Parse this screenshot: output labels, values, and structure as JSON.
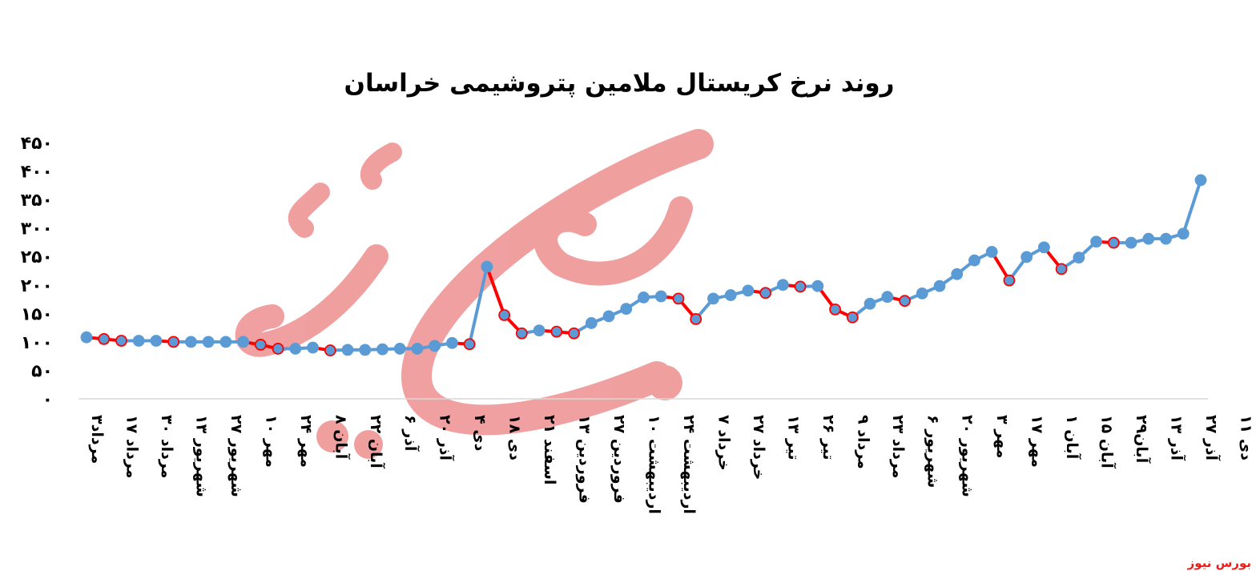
{
  "chart_data": {
    "type": "line",
    "title": "روند نرخ کریستال ملامین پتروشیمی خراسان",
    "xlabel": "",
    "ylabel": "",
    "ylim": [
      0,
      450
    ],
    "y_ticks": [
      "۰",
      "۵۰",
      "۱۰۰",
      "۱۵۰",
      "۲۰۰",
      "۲۵۰",
      "۳۰۰",
      "۳۵۰",
      "۴۰۰",
      "۴۵۰"
    ],
    "grid": false,
    "legend": "none",
    "colors": {
      "rise": "#5b9bd5",
      "fall": "#ff0000",
      "axis": "#d9d9d9",
      "point_fill": "#5b9bd5"
    },
    "x_tick_labels": [
      "۳مرداد",
      "۱۷ مرداد",
      "۳۰ مرداد",
      "۱۳ شهریور",
      "۲۷ شهریور",
      "۱۰ مهر",
      "۲۴ مهر",
      "۸ آبان",
      "۲۲ آبان",
      "۶ آذر",
      "۲۰ آذر",
      "۴ دی",
      "۱۸ دی",
      "۲۱ اسفند",
      "۱۳ فروردین",
      "۲۷ فروردین",
      "۱۰ اردیبهشت",
      "۲۴ اردیبهشت",
      "۷ خرداد",
      "۲۷ خرداد",
      "۱۳ تیر",
      "۲۶ تیر",
      "۹ مرداد",
      "۲۳ مرداد",
      "۶ شهریور",
      "۲۰ شهریور",
      "۳ مهر",
      "۱۷ مهر",
      "۱ آبان",
      "۱۵ آبان",
      "۲۹آبان",
      "۱۳ آذر",
      "۲۷ آذر",
      "۱۱ دی"
    ],
    "values": [
      108,
      105,
      102,
      102,
      102,
      100,
      100,
      100,
      100,
      100,
      95,
      88,
      88,
      90,
      85,
      86,
      86,
      87,
      88,
      88,
      93,
      98,
      96,
      232,
      147,
      115,
      120,
      118,
      115,
      133,
      145,
      158,
      178,
      180,
      176,
      140,
      176,
      182,
      190,
      186,
      200,
      197,
      198,
      157,
      143,
      167,
      179,
      172,
      185,
      198,
      219,
      243,
      258,
      208,
      249,
      266,
      228,
      248,
      276,
      274,
      274,
      281,
      281,
      290,
      384
    ]
  },
  "watermark": {
    "text": "بورس نیوز",
    "color": "#e8201b"
  }
}
